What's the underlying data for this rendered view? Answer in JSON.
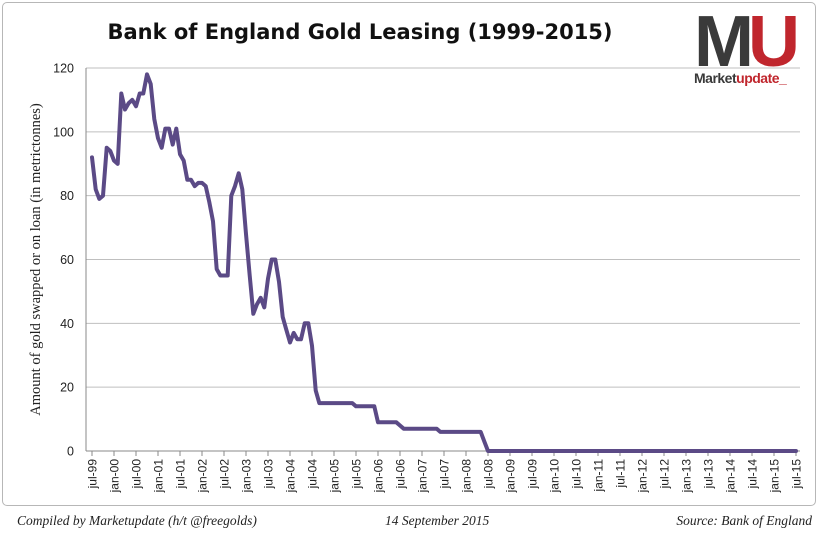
{
  "colors": {
    "line": "#5b4a86",
    "grid": "#bfbfbf",
    "axis": "#888888",
    "text": "#222222",
    "logo_dark": "#3a3a3a",
    "logo_red": "#c0262d"
  },
  "logo": {
    "mark_letter_1": "M",
    "mark_letter_2": "U",
    "word_part_1": "Market",
    "word_part_2": "update_"
  },
  "footer": {
    "compiled": "Compiled by Marketupdate (h/t @freegolds)",
    "date": "14 September 2015",
    "source": "Source: Bank of England"
  },
  "chart_data": {
    "type": "line",
    "title": "Bank of England Gold Leasing (1999-2015)",
    "xlabel": "",
    "ylabel": "Amount of gold swapped or on loan (in metrictonnes)",
    "ylim": [
      0,
      120
    ],
    "yticks": [
      0,
      20,
      40,
      60,
      80,
      100,
      120
    ],
    "grid": true,
    "legend": "none",
    "x_tick_labels": [
      "jul-99",
      "jan-00",
      "jul-00",
      "jan-01",
      "jul-01",
      "jan-02",
      "jul-02",
      "jan-03",
      "jul-03",
      "jan-04",
      "jul-04",
      "jan-05",
      "jul-05",
      "jan-06",
      "jul-06",
      "jan-07",
      "jul-07",
      "jan-08",
      "jul-08",
      "jan-09",
      "jul-09",
      "jan-10",
      "jul-10",
      "jan-11",
      "jul-11",
      "jan-12",
      "jul-12",
      "jan-13",
      "jul-13",
      "jan-14",
      "jul-14",
      "jan-15",
      "jul-15"
    ],
    "series": [
      {
        "x": [
          "1999-07",
          "1999-08",
          "1999-09",
          "1999-10",
          "1999-11",
          "1999-12",
          "2000-01",
          "2000-02",
          "2000-03",
          "2000-04",
          "2000-05",
          "2000-06",
          "2000-07",
          "2000-08",
          "2000-09",
          "2000-10",
          "2000-11",
          "2000-12",
          "2001-01",
          "2001-02",
          "2001-03",
          "2001-04",
          "2001-05",
          "2001-06",
          "2001-07",
          "2001-08",
          "2001-09",
          "2001-10",
          "2001-11",
          "2001-12",
          "2002-01",
          "2002-02",
          "2002-03",
          "2002-04",
          "2002-05",
          "2002-06",
          "2002-07",
          "2002-08",
          "2002-09",
          "2002-10",
          "2002-11",
          "2002-12",
          "2003-01",
          "2003-02",
          "2003-03",
          "2003-04",
          "2003-05",
          "2003-06",
          "2003-07",
          "2003-08",
          "2003-09",
          "2003-10",
          "2003-11",
          "2003-12",
          "2004-01",
          "2004-02",
          "2004-03",
          "2004-04",
          "2004-05",
          "2004-06",
          "2004-07",
          "2004-08",
          "2004-09",
          "2004-10",
          "2004-11",
          "2004-12",
          "2005-06",
          "2005-07",
          "2005-12",
          "2006-01",
          "2006-06",
          "2006-07",
          "2006-08",
          "2007-05",
          "2007-06",
          "2008-04",
          "2008-05",
          "2008-06",
          "2008-07",
          "2015-07"
        ],
        "values": [
          92,
          82,
          79,
          80,
          95,
          94,
          91,
          90,
          112,
          107,
          109,
          110,
          108,
          112,
          112,
          118,
          115,
          104,
          98,
          95,
          101,
          101,
          96,
          101,
          93,
          91,
          85,
          85,
          83,
          84,
          84,
          83,
          78,
          72,
          57,
          55,
          55,
          55,
          80,
          83,
          87,
          82,
          68,
          55,
          43,
          46,
          48,
          45,
          54,
          60,
          60,
          53,
          42,
          38,
          34,
          37,
          35,
          35,
          40,
          40,
          33,
          19,
          15,
          15,
          15,
          15,
          15,
          14,
          14,
          9,
          9,
          8,
          7,
          7,
          6,
          6,
          6,
          3,
          0,
          0
        ]
      }
    ]
  }
}
